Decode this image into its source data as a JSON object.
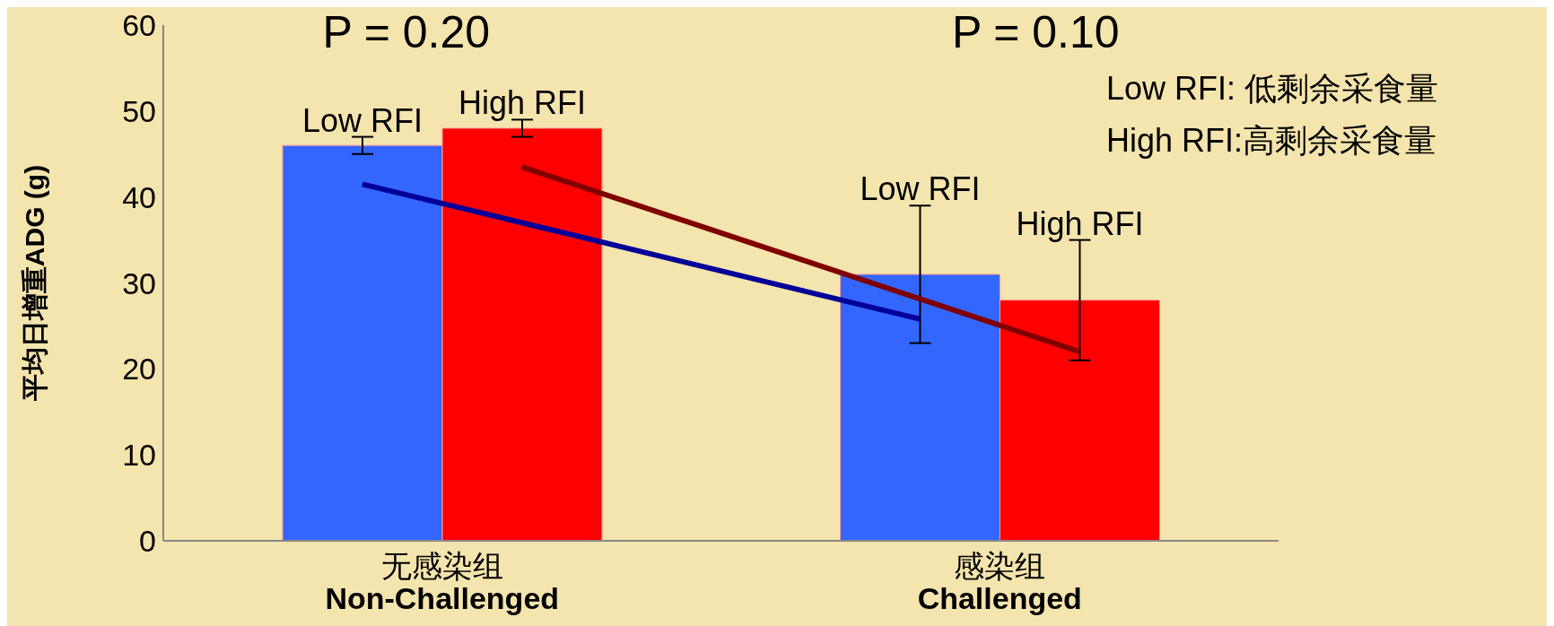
{
  "chart_data": {
    "type": "bar",
    "categories": [
      "无感染组\nNon-Challenged",
      "感染组\nChallenged"
    ],
    "series": [
      {
        "name": "Low RFI",
        "color": "#3366ff",
        "values": [
          46,
          31
        ],
        "errors": [
          1,
          8
        ]
      },
      {
        "name": "High RFI",
        "color": "#ff0000",
        "values": [
          48,
          28
        ],
        "errors": [
          1,
          7
        ]
      },
      {
        "type": "line",
        "color": "#000099",
        "values": [
          41.5,
          25.8
        ]
      },
      {
        "type": "line",
        "color": "#800000",
        "values": [
          43.5,
          22
        ]
      }
    ],
    "ylabel": "平均日增重ADG (g)",
    "ylim": [
      0,
      60
    ],
    "yticks": [
      0,
      10,
      20,
      30,
      40,
      50,
      60
    ],
    "annotations": [
      "P = 0.20",
      "P = 0.10",
      "Low RFI: 低剩余采食量",
      "High RFI:高剩余采食量"
    ],
    "grid": false,
    "legend": false
  }
}
